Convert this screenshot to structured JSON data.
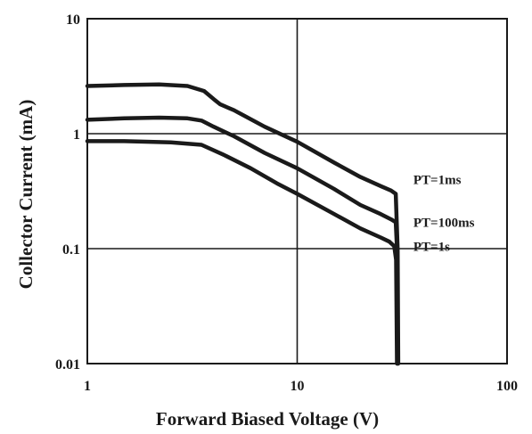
{
  "chart_data": {
    "type": "line",
    "xlabel": "Forward Biased Voltage (V)",
    "ylabel": "Collector Current (mA)",
    "xscale": "log",
    "yscale": "log",
    "xlim": [
      1,
      100
    ],
    "ylim": [
      0.01,
      10
    ],
    "grid": true,
    "x_ticks": [
      {
        "value": 1,
        "label": "1"
      },
      {
        "value": 10,
        "label": "10"
      },
      {
        "value": 100,
        "label": "100"
      }
    ],
    "y_ticks": [
      {
        "value": 0.01,
        "label": "0.01"
      },
      {
        "value": 0.1,
        "label": "0.1"
      },
      {
        "value": 1,
        "label": "1"
      },
      {
        "value": 10,
        "label": "10"
      }
    ],
    "series": [
      {
        "name": "PT=1ms",
        "points": [
          [
            1,
            2.6
          ],
          [
            1.5,
            2.65
          ],
          [
            2.2,
            2.68
          ],
          [
            3,
            2.6
          ],
          [
            3.6,
            2.35
          ],
          [
            4,
            2.0
          ],
          [
            4.3,
            1.8
          ],
          [
            5,
            1.6
          ],
          [
            7,
            1.15
          ],
          [
            10,
            0.85
          ],
          [
            15,
            0.56
          ],
          [
            20,
            0.42
          ],
          [
            25,
            0.35
          ],
          [
            28,
            0.32
          ],
          [
            29.5,
            0.3
          ],
          [
            30.1,
            0.1
          ],
          [
            30.3,
            0.01
          ]
        ]
      },
      {
        "name": "PT=100ms",
        "points": [
          [
            1,
            1.32
          ],
          [
            1.5,
            1.36
          ],
          [
            2.2,
            1.38
          ],
          [
            3,
            1.36
          ],
          [
            3.5,
            1.3
          ],
          [
            4,
            1.15
          ],
          [
            5,
            0.95
          ],
          [
            7,
            0.68
          ],
          [
            10,
            0.5
          ],
          [
            15,
            0.33
          ],
          [
            20,
            0.24
          ],
          [
            25,
            0.2
          ],
          [
            28,
            0.18
          ],
          [
            29.5,
            0.17
          ],
          [
            29.9,
            0.1
          ],
          [
            30.1,
            0.01
          ]
        ]
      },
      {
        "name": "PT=1s",
        "points": [
          [
            1,
            0.86
          ],
          [
            1.5,
            0.86
          ],
          [
            2.5,
            0.84
          ],
          [
            3.5,
            0.8
          ],
          [
            4.5,
            0.65
          ],
          [
            6,
            0.5
          ],
          [
            8,
            0.37
          ],
          [
            10,
            0.3
          ],
          [
            15,
            0.2
          ],
          [
            20,
            0.15
          ],
          [
            25,
            0.125
          ],
          [
            27.5,
            0.115
          ],
          [
            29,
            0.105
          ],
          [
            29.6,
            0.08
          ],
          [
            29.9,
            0.01
          ]
        ]
      }
    ]
  }
}
